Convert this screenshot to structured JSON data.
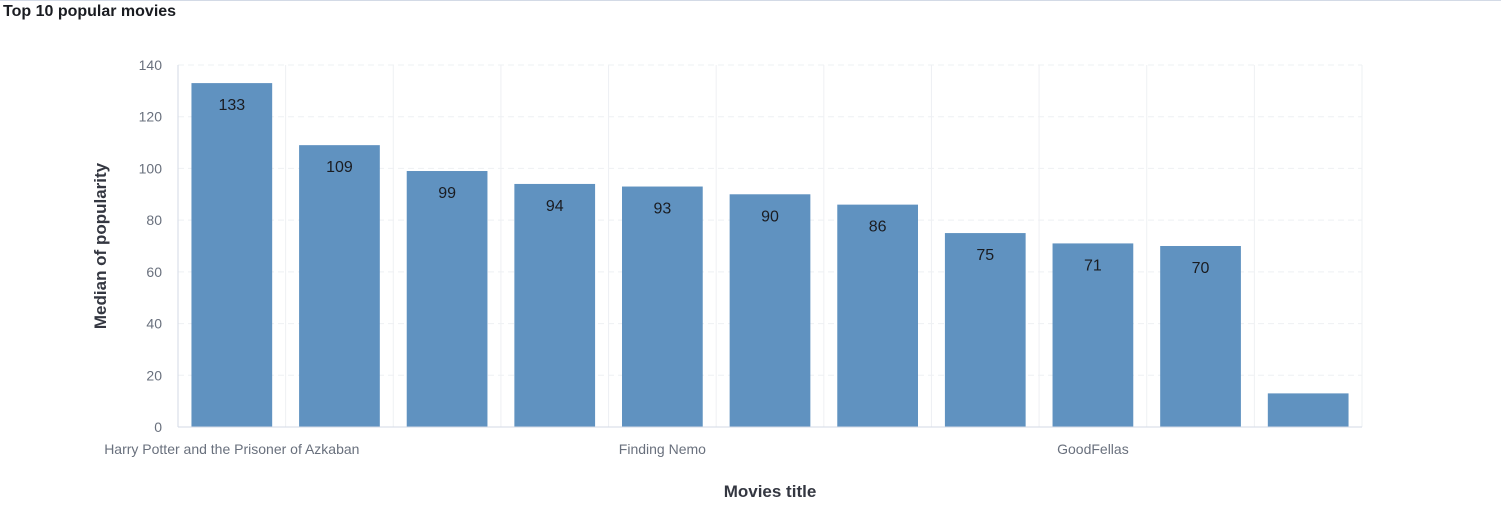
{
  "panel": {
    "title": "Top 10 popular movies"
  },
  "chart_data": {
    "type": "bar",
    "title": "Top 10 popular movies",
    "xlabel": "Movies title",
    "ylabel": "Median of popularity",
    "ylim": [
      0,
      140
    ],
    "yticks": [
      "0",
      "20",
      "40",
      "60",
      "80",
      "100",
      "120",
      "140"
    ],
    "grid": true,
    "bar_color": "#6092c0",
    "values": [
      133,
      109,
      99,
      94,
      93,
      90,
      86,
      75,
      71,
      70,
      13
    ],
    "data_labels": [
      "133",
      "109",
      "99",
      "94",
      "93",
      "90",
      "86",
      "75",
      "71",
      "70",
      ""
    ],
    "category_labels": [
      "Harry Potter and the Prisoner of Azkaban",
      "",
      "",
      "",
      "Finding Nemo",
      "",
      "",
      "",
      "GoodFellas",
      "",
      ""
    ]
  }
}
